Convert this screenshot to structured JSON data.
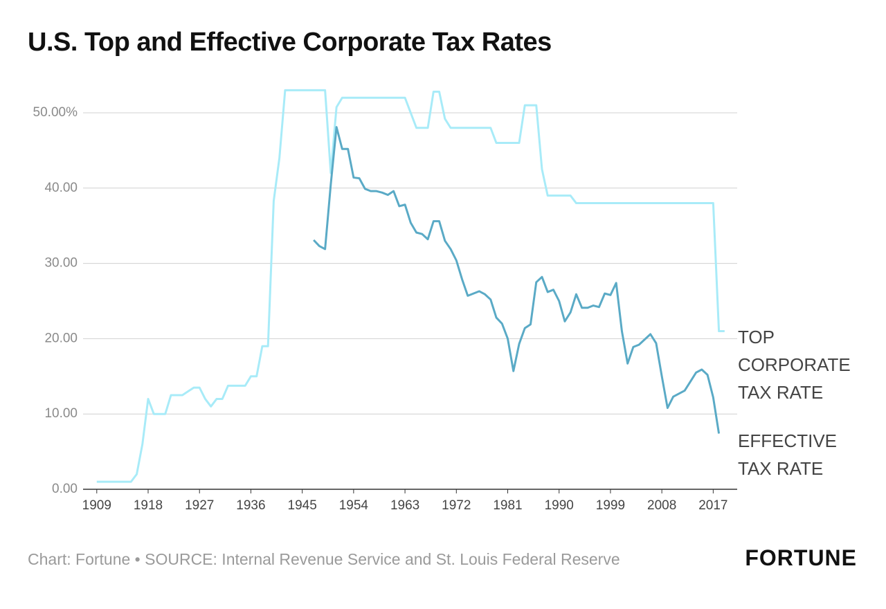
{
  "chart_data": {
    "type": "line",
    "title": "U.S. Top and Effective Corporate Tax Rates",
    "source": "Chart: Fortune • SOURCE: Internal Revenue Service and St. Louis Federal Reserve",
    "brand": "FORTUNE",
    "xlim": [
      1906.6,
      2021.2
    ],
    "xticks": [
      1909,
      1918,
      1927,
      1936,
      1945,
      1954,
      1963,
      1972,
      1981,
      1990,
      1999,
      2008,
      2017
    ],
    "ylim": [
      0,
      55
    ],
    "yticks": [
      {
        "value": 0,
        "label": "0.00"
      },
      {
        "value": 10,
        "label": "10.00"
      },
      {
        "value": 20,
        "label": "20.00"
      },
      {
        "value": 30,
        "label": "30.00"
      },
      {
        "value": 40,
        "label": "40.00"
      },
      {
        "value": 50,
        "label": "50.00%"
      }
    ],
    "grid": true,
    "series": [
      {
        "name": "TOP CORPORATE TAX RATE",
        "color": "#a8ebf8",
        "x": [
          1909,
          1910,
          1911,
          1912,
          1913,
          1914,
          1915,
          1916,
          1917,
          1918,
          1919,
          1920,
          1921,
          1922,
          1923,
          1924,
          1925,
          1926,
          1927,
          1928,
          1929,
          1930,
          1931,
          1932,
          1933,
          1934,
          1935,
          1936,
          1937,
          1938,
          1939,
          1940,
          1941,
          1942,
          1943,
          1944,
          1945,
          1946,
          1947,
          1948,
          1949,
          1950,
          1951,
          1952,
          1953,
          1954,
          1955,
          1956,
          1957,
          1958,
          1959,
          1960,
          1961,
          1962,
          1963,
          1964,
          1965,
          1966,
          1967,
          1968,
          1969,
          1970,
          1971,
          1972,
          1973,
          1974,
          1975,
          1976,
          1977,
          1978,
          1979,
          1980,
          1981,
          1982,
          1983,
          1984,
          1985,
          1986,
          1987,
          1988,
          1989,
          1990,
          1991,
          1992,
          1993,
          1994,
          1995,
          1996,
          1997,
          1998,
          1999,
          2000,
          2001,
          2002,
          2003,
          2004,
          2005,
          2006,
          2007,
          2008,
          2009,
          2010,
          2011,
          2012,
          2013,
          2014,
          2015,
          2016,
          2017,
          2018,
          2019
        ],
        "values": [
          1,
          1,
          1,
          1,
          1,
          1,
          1,
          2,
          6,
          12,
          10,
          10,
          10,
          12.5,
          12.5,
          12.5,
          13,
          13.5,
          13.5,
          12,
          11,
          12,
          12,
          13.75,
          13.75,
          13.75,
          13.75,
          15,
          15,
          19,
          19,
          38.3,
          44,
          53,
          53,
          53,
          53,
          53,
          53,
          53,
          53,
          42,
          50.75,
          52,
          52,
          52,
          52,
          52,
          52,
          52,
          52,
          52,
          52,
          52,
          52,
          50,
          48,
          48,
          48,
          52.8,
          52.8,
          49.2,
          48,
          48,
          48,
          48,
          48,
          48,
          48,
          48,
          46,
          46,
          46,
          46,
          46,
          51,
          51,
          51,
          42.5,
          39,
          39,
          39,
          39,
          39,
          38,
          38,
          38,
          38,
          38,
          38,
          38,
          38,
          38,
          38,
          38,
          38,
          38,
          38,
          38,
          38,
          38,
          38,
          38,
          38,
          38,
          38,
          38,
          38,
          38,
          21,
          21
        ]
      },
      {
        "name": "EFFECTIVE TAX RATE",
        "color": "#5aaac6",
        "x": [
          1947,
          1948,
          1949,
          1950,
          1951,
          1952,
          1953,
          1954,
          1955,
          1956,
          1957,
          1958,
          1959,
          1960,
          1961,
          1962,
          1963,
          1964,
          1965,
          1966,
          1967,
          1968,
          1969,
          1970,
          1971,
          1972,
          1973,
          1974,
          1975,
          1976,
          1977,
          1978,
          1979,
          1980,
          1981,
          1982,
          1983,
          1984,
          1985,
          1986,
          1987,
          1988,
          1989,
          1990,
          1991,
          1992,
          1993,
          1994,
          1995,
          1996,
          1997,
          1998,
          1999,
          2000,
          2001,
          2002,
          2003,
          2004,
          2005,
          2006,
          2007,
          2008,
          2009,
          2010,
          2011,
          2012,
          2013,
          2014,
          2015,
          2016,
          2017,
          2018
        ],
        "values": [
          33.1,
          32.3,
          31.9,
          40.5,
          48.1,
          45.2,
          45.2,
          41.4,
          41.3,
          39.9,
          39.6,
          39.6,
          39.4,
          39.1,
          39.6,
          37.6,
          37.8,
          35.4,
          34.1,
          33.9,
          33.2,
          35.6,
          35.6,
          33.0,
          31.9,
          30.4,
          27.9,
          25.7,
          26.0,
          26.3,
          25.9,
          25.2,
          22.8,
          22.0,
          20.0,
          15.7,
          19.3,
          21.4,
          21.9,
          27.5,
          28.2,
          26.2,
          26.5,
          25.0,
          22.3,
          23.5,
          25.9,
          24.1,
          24.1,
          24.4,
          24.2,
          26.0,
          25.8,
          27.4,
          21.0,
          16.7,
          18.9,
          19.2,
          19.9,
          20.6,
          19.4,
          15.0,
          10.8,
          12.3,
          12.7,
          13.1,
          14.3,
          15.5,
          15.9,
          15.2,
          12.2,
          7.4
        ]
      }
    ]
  }
}
